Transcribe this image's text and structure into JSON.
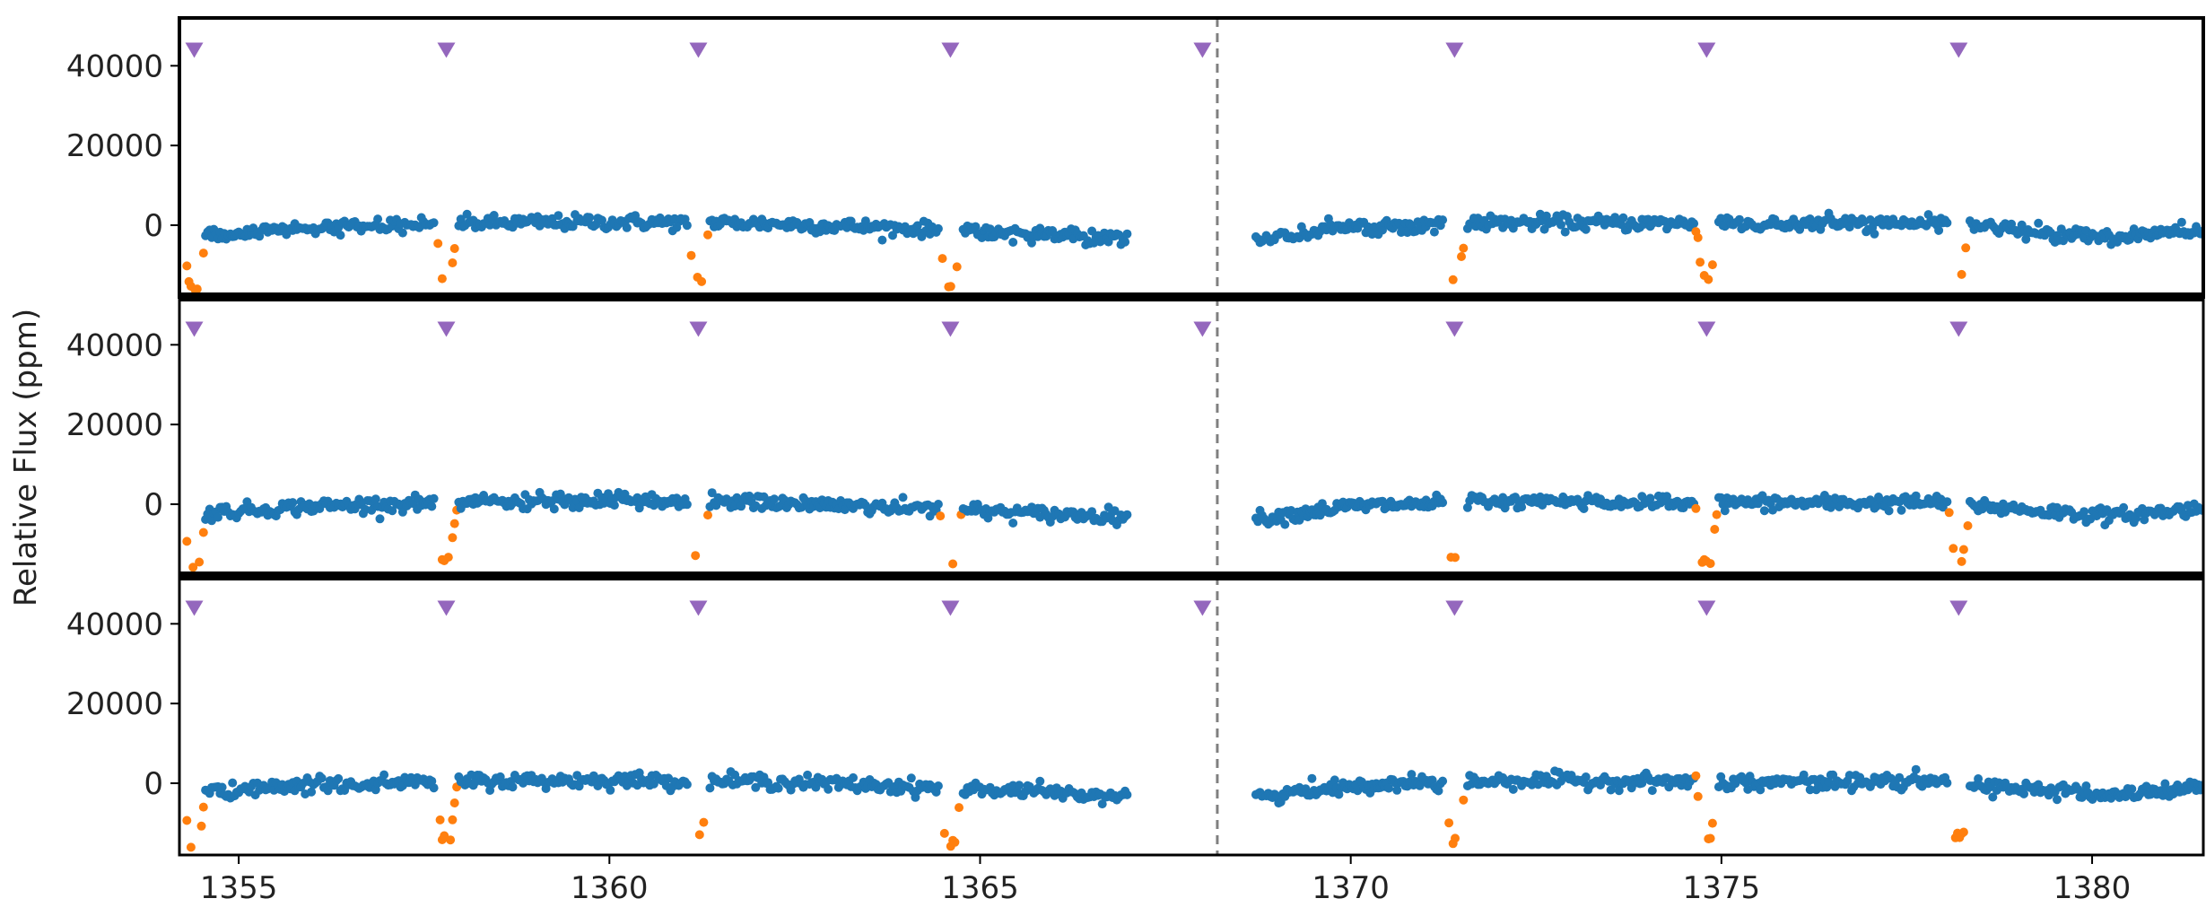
{
  "figure": {
    "ylabel": "Relative Flux (ppm)",
    "colors": {
      "out_of_transit": "#1f77b4",
      "in_transit": "#ff7f0e",
      "transit_marker": "#9467bd",
      "gap_line": "#808080",
      "axes": "#000000"
    },
    "marker_shape": "downward-triangle"
  },
  "chart_data": {
    "type": "scatter",
    "panel_count": 3,
    "shared_x": true,
    "xlim": [
      1354.2,
      1381.5
    ],
    "ylim": [
      -18000,
      52000
    ],
    "x_ticks": [
      1355,
      1360,
      1365,
      1370,
      1375,
      1380
    ],
    "y_ticks": [
      0,
      20000,
      40000
    ],
    "x_tick_labels": [
      "1355",
      "1360",
      "1365",
      "1370",
      "1375",
      "1380"
    ],
    "y_tick_labels": [
      "0",
      "20000",
      "40000"
    ],
    "grid": false,
    "data_gap": {
      "start": 1367.0,
      "end": 1368.7
    },
    "gap_marker_x": 1368.2,
    "transit_times": [
      1354.4,
      1357.8,
      1361.2,
      1364.6,
      1368.0,
      1371.4,
      1374.8,
      1378.2
    ],
    "transit_marker_y": 44000,
    "transit_half_width_days": 0.15,
    "transit_depth": -14000,
    "baseline_model": {
      "description_anchor_points": [
        {
          "x": 1354.3,
          "y": -2500
        },
        {
          "x": 1356.0,
          "y": -500
        },
        {
          "x": 1358.0,
          "y": 500
        },
        {
          "x": 1360.0,
          "y": 800
        },
        {
          "x": 1362.0,
          "y": 500
        },
        {
          "x": 1364.0,
          "y": -800
        },
        {
          "x": 1366.0,
          "y": -2600
        },
        {
          "x": 1367.0,
          "y": -3000
        },
        {
          "x": 1368.8,
          "y": -3500
        },
        {
          "x": 1370.0,
          "y": -500
        },
        {
          "x": 1372.0,
          "y": 700
        },
        {
          "x": 1374.0,
          "y": 500
        },
        {
          "x": 1376.0,
          "y": 300
        },
        {
          "x": 1378.0,
          "y": 400
        },
        {
          "x": 1379.5,
          "y": -2000
        },
        {
          "x": 1380.3,
          "y": -3000
        },
        {
          "x": 1381.5,
          "y": -1000
        }
      ],
      "scatter_ppm": 900
    },
    "series": [
      {
        "name": "",
        "role": "out_of_transit"
      },
      {
        "name": "",
        "role": "in_transit"
      },
      {
        "name": "",
        "role": "transit_markers"
      }
    ]
  }
}
